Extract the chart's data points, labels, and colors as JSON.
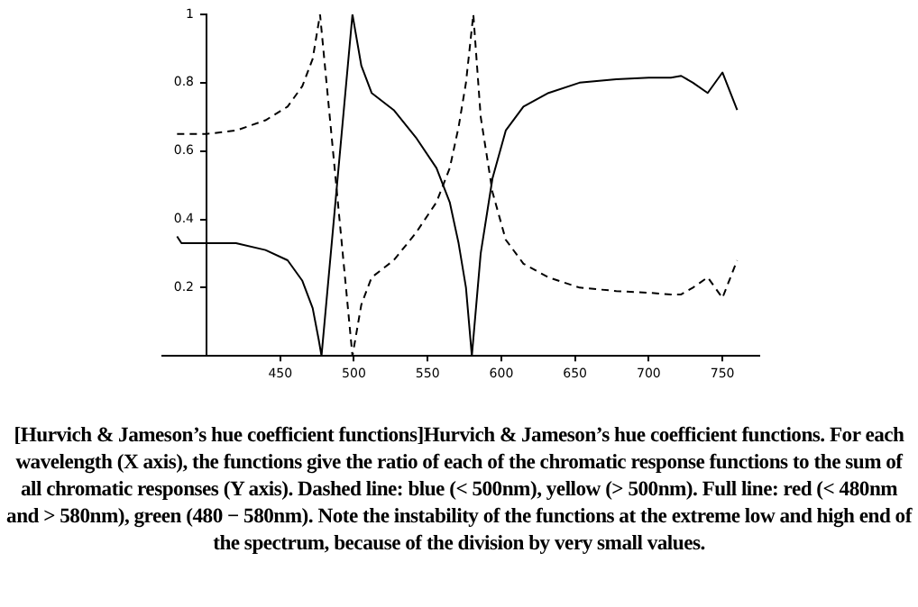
{
  "chart_data": {
    "type": "line",
    "xlim": [
      370,
      775
    ],
    "ylim": [
      0,
      1
    ],
    "xticks": [
      450,
      500,
      550,
      600,
      650,
      700,
      750
    ],
    "yticks": [
      0.2,
      0.4,
      0.6,
      0.8,
      1
    ],
    "grid": false,
    "legend": false,
    "marker": "none",
    "series": [
      {
        "color": "#000000",
        "line_style": "solid",
        "x": [
          380,
          383,
          400,
          420,
          440,
          455,
          465,
          472,
          476,
          478,
          499,
          505,
          512,
          527,
          542,
          556,
          565,
          571,
          576,
          580,
          586,
          594,
          603,
          615,
          632,
          653,
          678,
          700,
          715,
          722,
          730,
          740,
          750,
          760
        ],
        "values": [
          0.35,
          0.33,
          0.33,
          0.33,
          0.31,
          0.28,
          0.22,
          0.14,
          0.05,
          0,
          1,
          0.85,
          0.77,
          0.72,
          0.64,
          0.55,
          0.45,
          0.33,
          0.2,
          0,
          0.3,
          0.52,
          0.66,
          0.73,
          0.77,
          0.8,
          0.81,
          0.815,
          0.815,
          0.82,
          0.8,
          0.77,
          0.83,
          0.72
        ]
      },
      {
        "color": "#000000",
        "line_style": "dashed",
        "x": [
          380,
          400,
          420,
          440,
          455,
          465,
          472,
          477,
          499,
          505,
          512,
          527,
          542,
          556,
          565,
          571,
          576,
          581,
          586,
          594,
          603,
          615,
          632,
          653,
          678,
          700,
          715,
          722,
          730,
          740,
          750,
          760
        ],
        "values": [
          0.65,
          0.65,
          0.66,
          0.69,
          0.73,
          0.79,
          0.87,
          1,
          0,
          0.15,
          0.23,
          0.28,
          0.36,
          0.45,
          0.55,
          0.67,
          0.8,
          1,
          0.7,
          0.48,
          0.34,
          0.27,
          0.23,
          0.2,
          0.19,
          0.185,
          0.18,
          0.18,
          0.2,
          0.23,
          0.17,
          0.28
        ]
      }
    ],
    "annotations": [
      "[Hurvich & Jameson’s hue coefficient functions]Hurvich & Jameson’s hue coefficient functions. For each wavelength (X axis), the functions give the ratio of each of the chromatic response functions to the sum of all chromatic responses (Y axis). Dashed line: blue (< 500nm), yellow (> 500nm). Full line: red (< 480nm and > 580nm), green (480 − 580nm). Note the instability of the functions at the extreme low and high end of the spectrum, because of the division by very small values."
    ]
  }
}
